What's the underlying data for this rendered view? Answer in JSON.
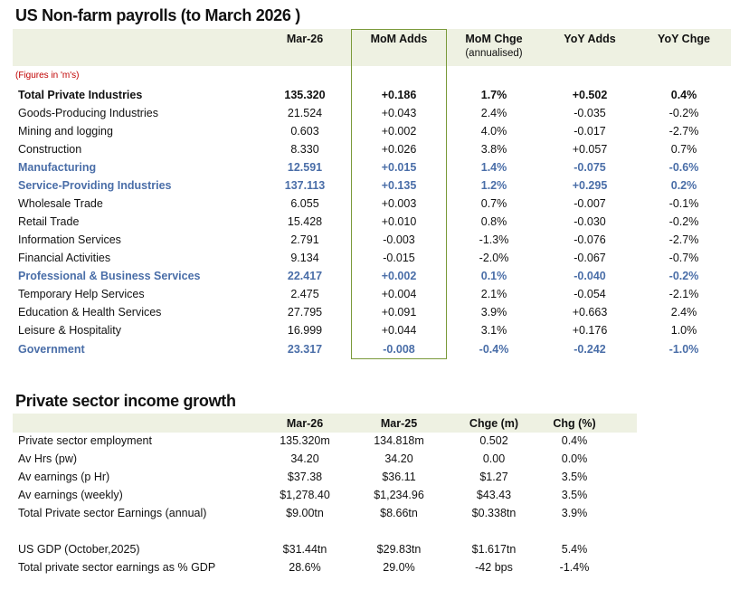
{
  "payrolls": {
    "title": "US Non-farm payrolls (to March 2026 )",
    "note": "(Figures in 'm's)",
    "headers": [
      "Mar-26",
      "MoM Adds",
      "MoM Chge",
      "YoY Adds",
      "YoY Chge"
    ],
    "mom_chge_sub": "(annualised)",
    "highlight_color": "#4a6ea8",
    "rows": [
      {
        "label": "Total Private Industries",
        "values": [
          "135.320",
          "+0.186",
          "1.7%",
          "+0.502",
          "0.4%"
        ],
        "style": "bold"
      },
      {
        "label": "Goods-Producing Industries",
        "values": [
          "21.524",
          "+0.043",
          "2.4%",
          "-0.035",
          "-0.2%"
        ],
        "style": ""
      },
      {
        "label": "Mining and logging",
        "values": [
          "0.603",
          "+0.002",
          "4.0%",
          "-0.017",
          "-2.7%"
        ],
        "style": ""
      },
      {
        "label": "Construction",
        "values": [
          "8.330",
          "+0.026",
          "3.8%",
          "+0.057",
          "0.7%"
        ],
        "style": ""
      },
      {
        "label": "Manufacturing",
        "values": [
          "12.591",
          "+0.015",
          "1.4%",
          "-0.075",
          "-0.6%"
        ],
        "style": "blue"
      },
      {
        "label": "Service-Providing Industries",
        "values": [
          "137.113",
          "+0.135",
          "1.2%",
          "+0.295",
          "0.2%"
        ],
        "style": "blue"
      },
      {
        "label": "Wholesale Trade",
        "values": [
          "6.055",
          "+0.003",
          "0.7%",
          "-0.007",
          "-0.1%"
        ],
        "style": ""
      },
      {
        "label": "Retail Trade",
        "values": [
          "15.428",
          "+0.010",
          "0.8%",
          "-0.030",
          "-0.2%"
        ],
        "style": ""
      },
      {
        "label": "Information Services",
        "values": [
          "2.791",
          "-0.003",
          "-1.3%",
          "-0.076",
          "-2.7%"
        ],
        "style": ""
      },
      {
        "label": "Financial Activities",
        "values": [
          "9.134",
          "-0.015",
          "-2.0%",
          "-0.067",
          "-0.7%"
        ],
        "style": ""
      },
      {
        "label": "Professional & Business Services",
        "values": [
          "22.417",
          "+0.002",
          "0.1%",
          "-0.040",
          "-0.2%"
        ],
        "style": "blue"
      },
      {
        "label": "Temporary Help Services",
        "values": [
          "2.475",
          "+0.004",
          "2.1%",
          "-0.054",
          "-2.1%"
        ],
        "style": ""
      },
      {
        "label": "Education & Health Services",
        "values": [
          "27.795",
          "+0.091",
          "3.9%",
          "+0.663",
          "2.4%"
        ],
        "style": ""
      },
      {
        "label": "Leisure & Hospitality",
        "values": [
          "16.999",
          "+0.044",
          "3.1%",
          "+0.176",
          "1.0%"
        ],
        "style": ""
      },
      {
        "label": "Government",
        "values": [
          "23.317",
          "-0.008",
          "-0.4%",
          "-0.242",
          "-1.0%"
        ],
        "style": "blue"
      }
    ]
  },
  "income": {
    "title": "Private sector income growth",
    "headers": [
      "Mar-26",
      "Mar-25",
      "Chge (m)",
      "Chg (%)"
    ],
    "rows": [
      {
        "label": "Private sector employment",
        "values": [
          "135.320m",
          "134.818m",
          "0.502",
          "0.4%"
        ]
      },
      {
        "label": "Av Hrs (pw)",
        "values": [
          "34.20",
          "34.20",
          "0.00",
          "0.0%"
        ]
      },
      {
        "label": "Av earnings (p Hr)",
        "values": [
          "$37.38",
          "$36.11",
          "$1.27",
          "3.5%"
        ]
      },
      {
        "label": "Av earnings (weekly)",
        "values": [
          "$1,278.40",
          "$1,234.96",
          "$43.43",
          "3.5%"
        ]
      },
      {
        "label": "Total Private sector Earnings (annual)",
        "values": [
          "$9.00tn",
          "$8.66tn",
          "$0.338tn",
          "3.9%"
        ]
      },
      {
        "label": "US GDP (October,2025)",
        "values": [
          "$31.44tn",
          "$29.83tn",
          "$1.617tn",
          "5.4%"
        ]
      },
      {
        "label": "Total private sector earnings as % GDP",
        "values": [
          "28.6%",
          "29.0%",
          "-42 bps",
          "-1.4%"
        ]
      }
    ]
  }
}
